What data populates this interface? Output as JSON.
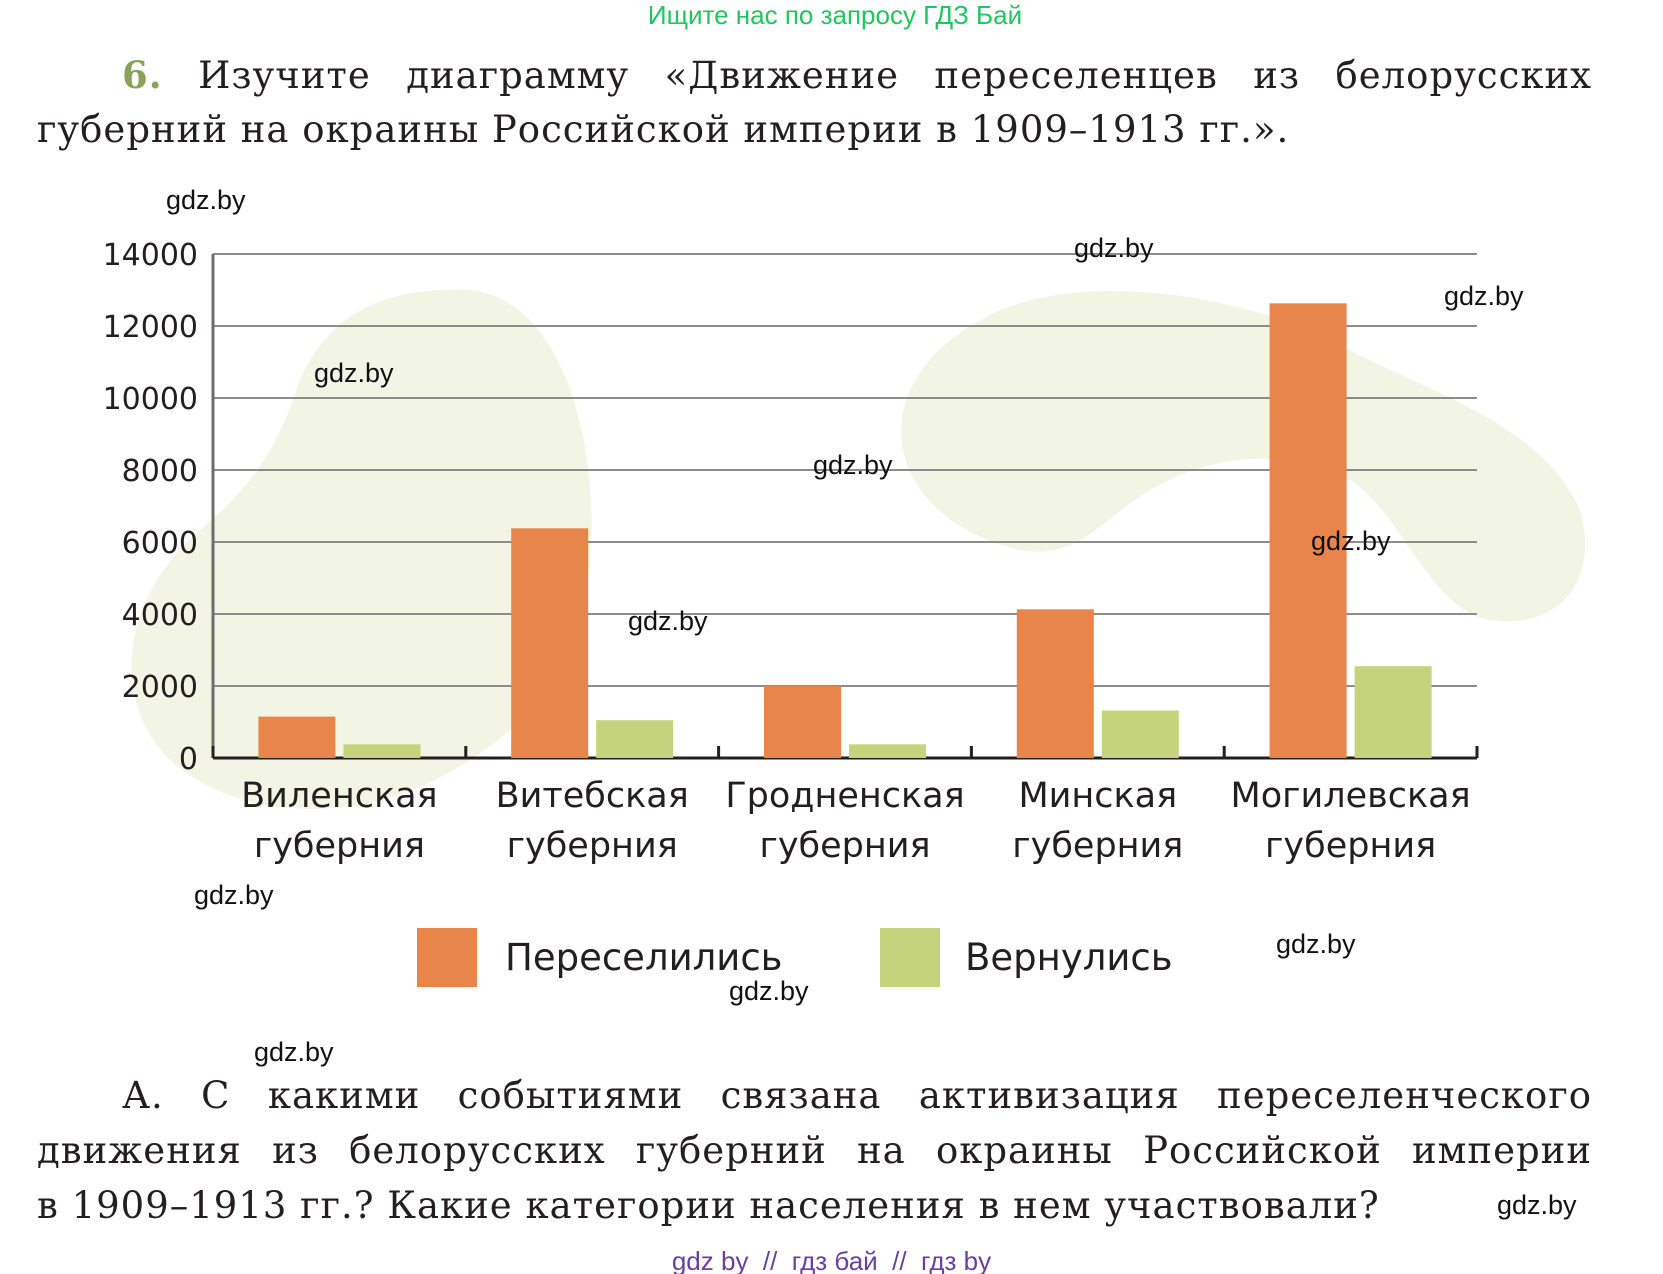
{
  "header_watermark": "Ищите нас по запросу ГДЗ Бай",
  "task": {
    "number": "6.",
    "line1": "Изучите диаграмму «Движение переселенцев из белорусских",
    "line2": "губерний на окраины Российской империи в 1909–1913 гг.»."
  },
  "question": {
    "letter": "А.",
    "line1": "С какими событиями связана активизация переселенческого",
    "line2": "движения из белорусских губерний на окраины Российской империи",
    "line3": "в 1909–1913 гг.? Какие категории населения в нем участвовали?"
  },
  "footer": "gdz by  //  гдз бай  //  гдз by",
  "watermark": "gdz.by",
  "colors": {
    "resettled": "#e8854a",
    "returned": "#c5d47c",
    "blob": "#f2f4e4",
    "header": "#22c55e",
    "number": "#8aa35a",
    "footer": "#6b3fa0"
  },
  "chart_data": {
    "type": "bar",
    "title": "",
    "xlabel": "",
    "ylabel": "",
    "ylim": [
      0,
      14000
    ],
    "yticks": [
      "0",
      "2000",
      "4000",
      "6000",
      "8000",
      "10000",
      "12000",
      "14000"
    ],
    "grid": true,
    "legend_position": "bottom",
    "categories": [
      [
        "Виленская",
        "губерния"
      ],
      [
        "Витебская",
        "губерния"
      ],
      [
        "Гродненская",
        "губерния"
      ],
      [
        "Минская",
        "губерния"
      ],
      [
        "Могилевская",
        "губерния"
      ]
    ],
    "series": [
      {
        "name": "Переселились",
        "values": [
          1150,
          6380,
          2000,
          4130,
          12630
        ]
      },
      {
        "name": "Вернулись",
        "values": [
          380,
          1050,
          380,
          1320,
          2550
        ]
      }
    ]
  }
}
